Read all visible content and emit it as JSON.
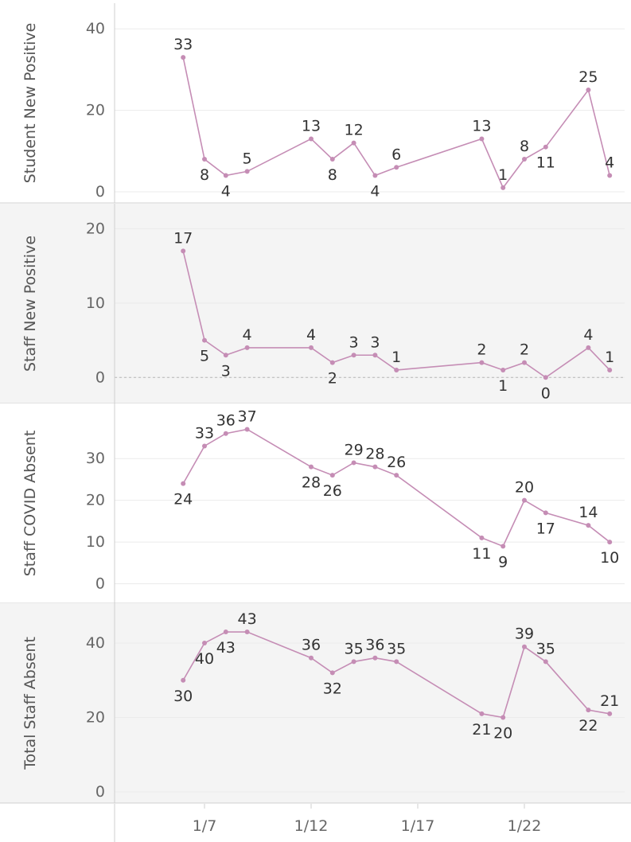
{
  "chart_data": {
    "type": "line",
    "color": "#c58db5",
    "panel_bg_alt": "#f4f4f4",
    "x_tick_labels": [
      "1/7",
      "1/12",
      "1/17",
      "1/22"
    ],
    "x_tick_days": [
      7,
      12,
      17,
      22
    ],
    "x_range": [
      1.5,
      26.8
    ],
    "panels": [
      {
        "ylabel": "Student New Positive",
        "ylim": [
          0,
          42
        ],
        "yticks": [
          0,
          20,
          40
        ],
        "x": [
          2,
          3,
          4,
          5,
          8,
          9,
          10,
          11,
          12,
          16,
          17,
          18,
          19,
          21,
          22
        ],
        "values": [
          33,
          8,
          4,
          5,
          13,
          8,
          12,
          4,
          6,
          13,
          1,
          8,
          11,
          25,
          4
        ],
        "zero_line": false
      },
      {
        "ylabel": "Staff New Positive",
        "ylim": [
          -2,
          21
        ],
        "yticks": [
          0,
          10,
          20
        ],
        "x": [
          2,
          3,
          4,
          5,
          8,
          9,
          10,
          11,
          12,
          16,
          17,
          18,
          19,
          21,
          22
        ],
        "values": [
          17,
          5,
          3,
          4,
          4,
          2,
          3,
          3,
          1,
          2,
          1,
          2,
          0,
          4,
          1
        ],
        "zero_line": true
      },
      {
        "ylabel": "Staff COVID Absent",
        "ylim": [
          -2,
          39
        ],
        "yticks": [
          0,
          10,
          20,
          30
        ],
        "x": [
          2,
          3,
          4,
          5,
          8,
          9,
          10,
          11,
          12,
          16,
          17,
          18,
          19,
          21,
          22
        ],
        "values": [
          24,
          33,
          36,
          37,
          28,
          26,
          29,
          28,
          26,
          11,
          9,
          20,
          17,
          14,
          10
        ],
        "zero_line": false
      },
      {
        "ylabel": "Total Staff Absent",
        "ylim": [
          0,
          46
        ],
        "yticks": [
          0,
          20,
          40
        ],
        "x": [
          2,
          3,
          4,
          5,
          8,
          9,
          10,
          11,
          12,
          16,
          17,
          18,
          19,
          21,
          22
        ],
        "values": [
          30,
          40,
          43,
          43,
          36,
          32,
          35,
          36,
          35,
          21,
          20,
          39,
          35,
          22,
          21
        ],
        "zero_line": false
      }
    ]
  }
}
